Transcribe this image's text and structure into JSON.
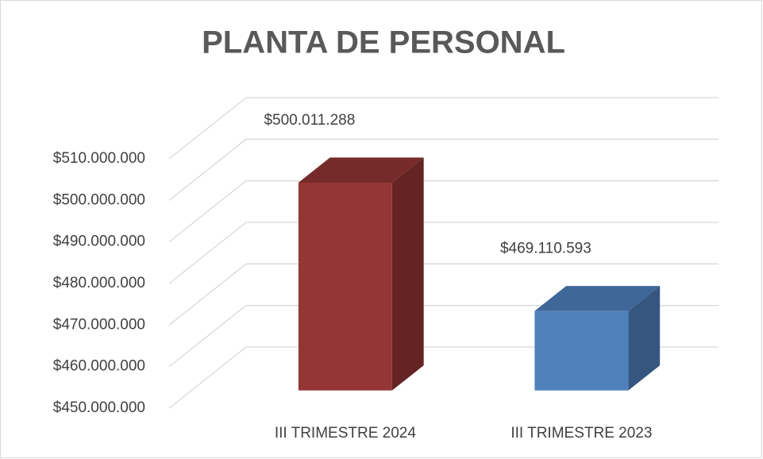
{
  "chart_data": {
    "type": "bar3d",
    "title": "PLANTA DE PERSONAL",
    "categories": [
      "III TRIMESTRE 2024",
      "III TRIMESTRE 2023"
    ],
    "values": [
      500011288,
      469110593
    ],
    "value_labels": [
      "$500.011.288",
      "$469.110.593"
    ],
    "colors": [
      "#943634",
      "#4f81bd"
    ],
    "ylim": [
      450000000,
      510000000
    ],
    "yticks": [
      {
        "value": 450000000,
        "label": "$450.000.000"
      },
      {
        "value": 460000000,
        "label": "$460.000.000"
      },
      {
        "value": 470000000,
        "label": "$470.000.000"
      },
      {
        "value": 480000000,
        "label": "$480.000.000"
      },
      {
        "value": 490000000,
        "label": "$490.000.000"
      },
      {
        "value": 500000000,
        "label": "$500.000.000"
      },
      {
        "value": 510000000,
        "label": "$510.000.000"
      }
    ],
    "grid": true
  }
}
